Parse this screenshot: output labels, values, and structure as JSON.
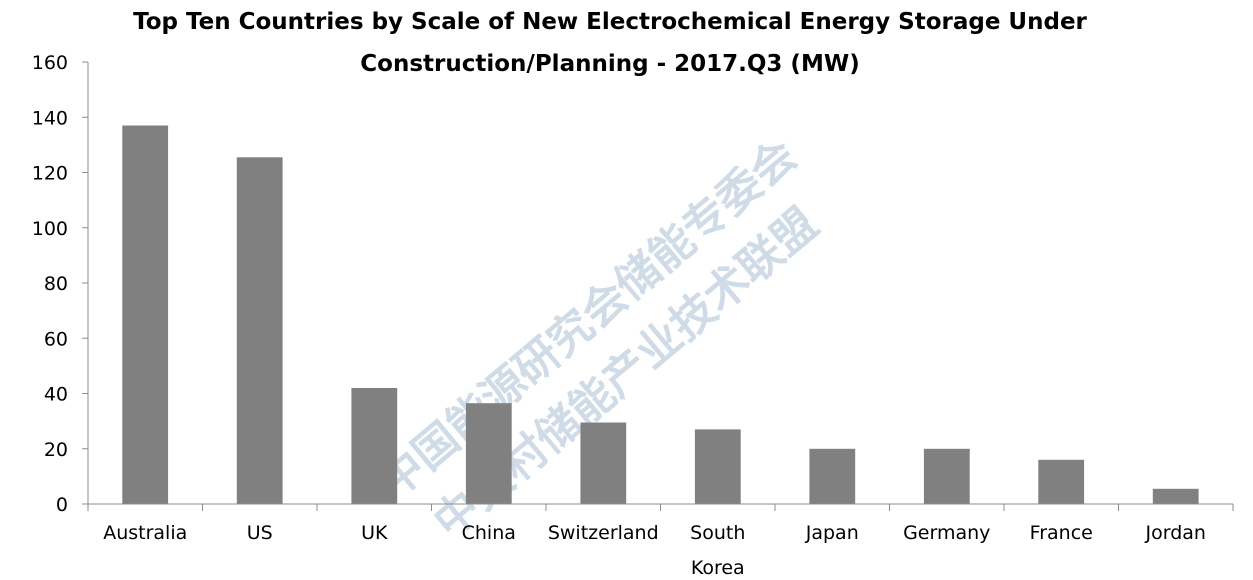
{
  "chart_data": {
    "type": "bar",
    "title_lines": [
      "Top Ten Countries by Scale of New Electrochemical Energy Storage Under",
      "Construction/Planning - 2017.Q3 (MW)"
    ],
    "categories": [
      "Australia",
      "US",
      "UK",
      "China",
      "Switzerland",
      "South Korea",
      "Japan",
      "Germany",
      "France",
      "Jordan"
    ],
    "category_lines": [
      [
        "Australia"
      ],
      [
        "US"
      ],
      [
        "UK"
      ],
      [
        "China"
      ],
      [
        "Switzerland"
      ],
      [
        "South",
        "Korea"
      ],
      [
        "Japan"
      ],
      [
        "Germany"
      ],
      [
        "France"
      ],
      [
        "Jordan"
      ]
    ],
    "values": [
      137,
      125.5,
      42,
      36.5,
      29.5,
      27,
      20,
      20,
      16,
      5.5
    ],
    "ylim": [
      0,
      160
    ],
    "yticks": [
      "0",
      "20",
      "40",
      "60",
      "80",
      "100",
      "120",
      "140",
      "160"
    ],
    "xlabel": "",
    "ylabel": "",
    "grid": false,
    "bar_color": "#808080"
  },
  "watermark": {
    "line1": "中国能源研究会储能专委会",
    "line2": "中关村储能产业技术联盟"
  }
}
